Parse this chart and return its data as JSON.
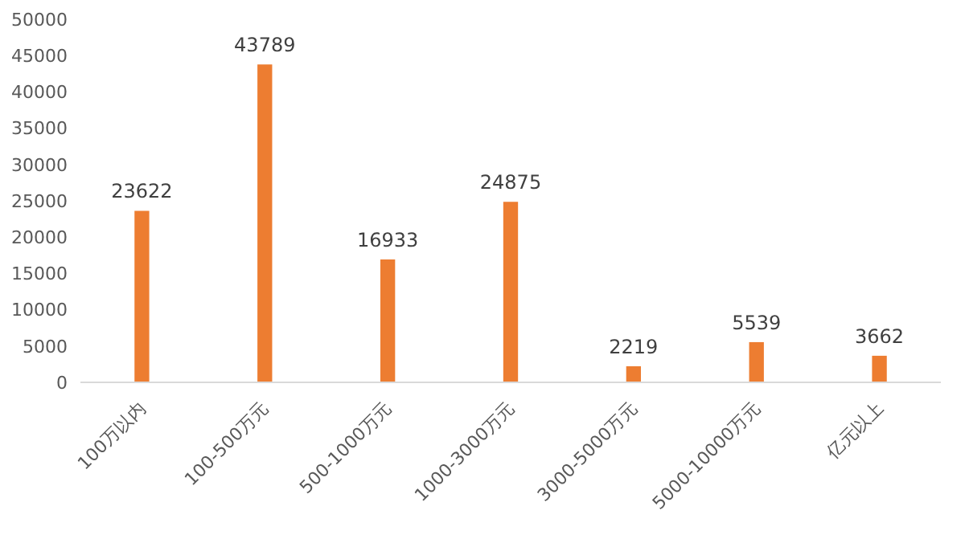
{
  "chart_data": {
    "type": "bar",
    "categories": [
      "100万以内",
      "100-500万元",
      "500-1000万元",
      "1000-3000万元",
      "3000-5000万元",
      "5000-10000万元",
      "亿元以上"
    ],
    "values": [
      23622,
      43789,
      16933,
      24875,
      2219,
      5539,
      3662
    ],
    "color": "#ed7d31",
    "ylim": [
      0,
      50000
    ],
    "yticks": [
      0,
      5000,
      10000,
      15000,
      20000,
      25000,
      30000,
      35000,
      40000,
      45000,
      50000
    ],
    "grid": false,
    "data_labels": true
  }
}
